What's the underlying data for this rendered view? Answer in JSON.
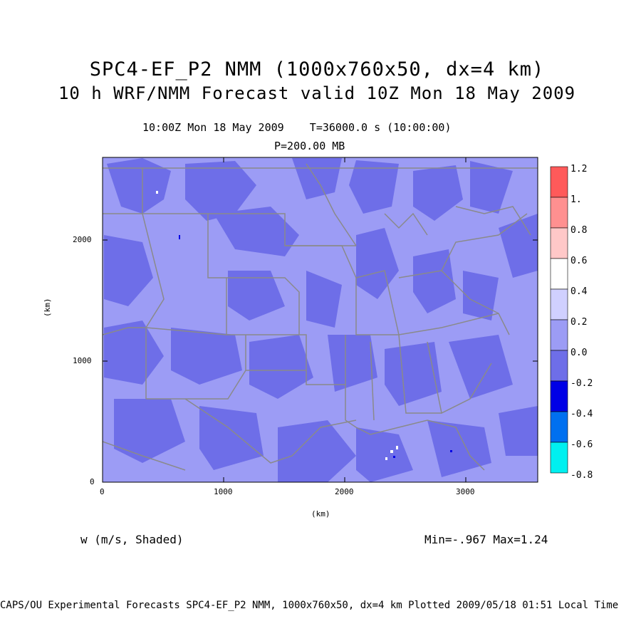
{
  "titles": {
    "line1": "SPC4-EF_P2 NMM (1000x760x50, dx=4 km)",
    "line2": "10 h WRF/NMM Forecast valid 10Z Mon 18 May 2009",
    "time": "10:00Z Mon 18 May 2009    T=36000.0 s (10:00:00)",
    "level": "P=200.00 MB"
  },
  "axes": {
    "xlabel": "(km)",
    "ylabel": "(km)",
    "xticks": [
      "0",
      "1000",
      "2000",
      "3000"
    ],
    "yticks": [
      "0",
      "1000",
      "2000"
    ]
  },
  "variable_label": "w (m/s, Shaded)",
  "minmax": "Min=-.967 Max=1.24",
  "footer": "CAPS/OU Experimental Forecasts  SPC4-EF_P2 NMM, 1000x760x50, dx=4 km  Plotted 2009/05/18 01:51 Local Time",
  "colorbar": {
    "labels": [
      "1.2",
      "1.",
      "0.8",
      "0.6",
      "0.4",
      "0.2",
      "0.0",
      "-0.2",
      "-0.4",
      "-0.6",
      "-0.8"
    ],
    "colors": [
      "#ff5a5a",
      "#ff9090",
      "#ffc8c8",
      "#ffffff",
      "#d0d0ff",
      "#9c9cf5",
      "#6e6ee8",
      "#0000e6",
      "#0070f0",
      "#00f0f0"
    ]
  },
  "colors": {
    "light_shade": "#9c9cf5",
    "dark_shade": "#6e6ee8",
    "boundary": "#8a8a8a"
  }
}
